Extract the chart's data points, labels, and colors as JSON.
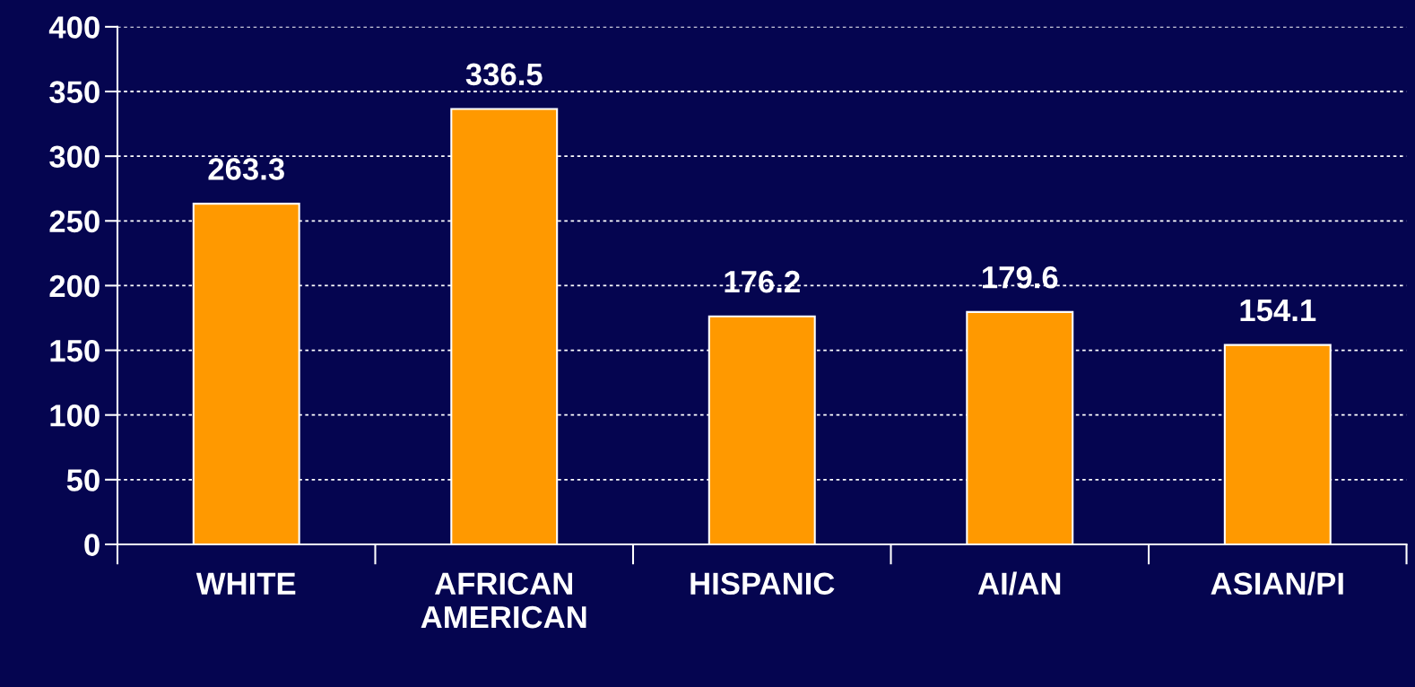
{
  "chart_data": {
    "type": "bar",
    "categories": [
      "WHITE",
      "AFRICAN\nAMERICAN",
      "HISPANIC",
      "AI/AN",
      "ASIAN/PI"
    ],
    "values": [
      263.3,
      336.5,
      176.2,
      179.6,
      154.1
    ],
    "color": "#ff9900",
    "ylim": [
      0,
      400
    ],
    "yticks": [
      0,
      50,
      100,
      150,
      200,
      250,
      300,
      350,
      400
    ],
    "grid": "y",
    "data_labels": true
  }
}
